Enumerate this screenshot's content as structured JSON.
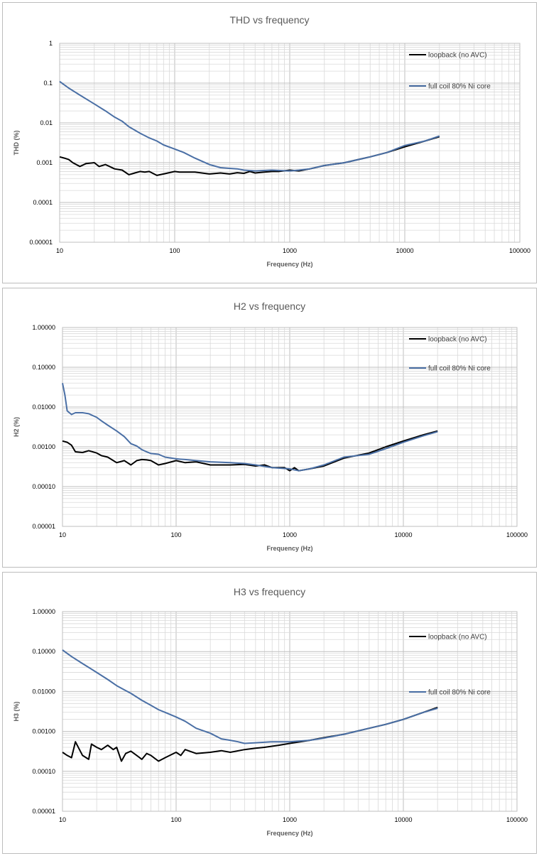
{
  "chart_data": [
    {
      "type": "line",
      "title": "THD vs frequency",
      "xlabel": "Frequency (Hz)",
      "ylabel": "THD (%)",
      "x_scale": "log",
      "y_scale": "log",
      "xlim": [
        10,
        100000
      ],
      "ylim": [
        1e-05,
        1
      ],
      "x_tick_labels": [
        "10",
        "100",
        "1000",
        "10000",
        "100000"
      ],
      "y_tick_labels": [
        "0.00001",
        "0.0001",
        "0.001",
        "0.01",
        "0.1",
        "1"
      ],
      "grid": true,
      "legend": "top-right",
      "series": [
        {
          "name": "loopback (no AVC)",
          "color": "#000000",
          "x": [
            10,
            11,
            12,
            13,
            15,
            17,
            20,
            22,
            25,
            30,
            35,
            40,
            45,
            50,
            55,
            60,
            70,
            80,
            100,
            110,
            120,
            150,
            200,
            250,
            300,
            350,
            400,
            450,
            500,
            600,
            700,
            800,
            1000,
            1200,
            1500,
            2000,
            3000,
            5000,
            7000,
            10000,
            15000,
            20000
          ],
          "y": [
            0.0014,
            0.0013,
            0.0012,
            0.001,
            0.0008,
            0.00095,
            0.001,
            0.0008,
            0.0009,
            0.0007,
            0.00065,
            0.0005,
            0.00055,
            0.0006,
            0.00058,
            0.0006,
            0.00048,
            0.00052,
            0.0006,
            0.00058,
            0.00058,
            0.00058,
            0.00052,
            0.00055,
            0.00052,
            0.00056,
            0.00054,
            0.0006,
            0.00055,
            0.00058,
            0.0006,
            0.0006,
            0.00065,
            0.00062,
            0.0007,
            0.00085,
            0.001,
            0.0014,
            0.0018,
            0.0025,
            0.0035,
            0.0045
          ]
        },
        {
          "name": "full coil 80% Ni core",
          "color": "#4a6fa5",
          "x": [
            10,
            11,
            12,
            15,
            20,
            25,
            30,
            35,
            40,
            50,
            60,
            70,
            80,
            100,
            120,
            150,
            200,
            250,
            300,
            350,
            400,
            500,
            700,
            1000,
            1200,
            1500,
            2000,
            3000,
            5000,
            7000,
            10000,
            15000,
            20000
          ],
          "y": [
            0.11,
            0.09,
            0.075,
            0.05,
            0.03,
            0.02,
            0.014,
            0.011,
            0.008,
            0.0055,
            0.0042,
            0.0035,
            0.0028,
            0.0022,
            0.0018,
            0.0013,
            0.0009,
            0.00075,
            0.00072,
            0.0007,
            0.00065,
            0.00062,
            0.00065,
            0.00062,
            0.00065,
            0.0007,
            0.00085,
            0.001,
            0.0014,
            0.0018,
            0.0027,
            0.0035,
            0.0047
          ]
        }
      ]
    },
    {
      "type": "line",
      "title": "H2 vs frequency",
      "xlabel": "Frequency (Hz)",
      "ylabel": "H2 (%)",
      "x_scale": "log",
      "y_scale": "log",
      "xlim": [
        10,
        100000
      ],
      "ylim": [
        1e-05,
        1
      ],
      "x_tick_labels": [
        "10",
        "100",
        "1000",
        "10000",
        "100000"
      ],
      "y_tick_labels": [
        "0.00001",
        "0.00010",
        "0.00100",
        "0.01000",
        "0.10000",
        "1.00000"
      ],
      "grid": true,
      "legend": "top-right",
      "series": [
        {
          "name": "loopback (no AVC)",
          "color": "#000000",
          "x": [
            10,
            11,
            12,
            13,
            15,
            17,
            20,
            22,
            25,
            30,
            35,
            40,
            45,
            50,
            55,
            60,
            70,
            80,
            100,
            120,
            150,
            200,
            300,
            400,
            500,
            600,
            700,
            800,
            900,
            1000,
            1100,
            1200,
            1500,
            2000,
            3000,
            5000,
            7000,
            10000,
            15000,
            20000
          ],
          "y": [
            0.0014,
            0.0013,
            0.0011,
            0.00075,
            0.00072,
            0.0008,
            0.0007,
            0.0006,
            0.00055,
            0.0004,
            0.00045,
            0.00035,
            0.00045,
            0.00048,
            0.00047,
            0.00045,
            0.00035,
            0.00038,
            0.00045,
            0.0004,
            0.00042,
            0.00035,
            0.00035,
            0.00036,
            0.00033,
            0.00035,
            0.0003,
            0.0003,
            0.0003,
            0.00025,
            0.0003,
            0.00025,
            0.00028,
            0.00033,
            0.00052,
            0.0007,
            0.001,
            0.0014,
            0.002,
            0.0025
          ]
        },
        {
          "name": "full coil  80% Ni core",
          "color": "#4a6fa5",
          "x": [
            10,
            10.5,
            11,
            12,
            13,
            15,
            17,
            20,
            22,
            25,
            30,
            35,
            40,
            45,
            50,
            55,
            60,
            70,
            80,
            100,
            120,
            150,
            200,
            300,
            400,
            500,
            700,
            1000,
            1200,
            1500,
            2000,
            3000,
            5000,
            7000,
            10000,
            15000,
            20000
          ],
          "y": [
            0.04,
            0.02,
            0.008,
            0.0065,
            0.0072,
            0.0072,
            0.0068,
            0.0055,
            0.0045,
            0.0035,
            0.0025,
            0.0018,
            0.0012,
            0.00105,
            0.00085,
            0.00075,
            0.00068,
            0.00065,
            0.00055,
            0.0005,
            0.00048,
            0.00045,
            0.00042,
            0.0004,
            0.00038,
            0.00035,
            0.0003,
            0.00028,
            0.00025,
            0.00028,
            0.00035,
            0.00055,
            0.00065,
            0.0009,
            0.0013,
            0.0019,
            0.0024
          ]
        }
      ]
    },
    {
      "type": "line",
      "title": "H3 vs frequency",
      "xlabel": "Frequency (Hz)",
      "ylabel": "H3 (%)",
      "x_scale": "log",
      "y_scale": "log",
      "xlim": [
        10,
        100000
      ],
      "ylim": [
        1e-05,
        1
      ],
      "x_tick_labels": [
        "10",
        "100",
        "1000",
        "10000",
        "100000"
      ],
      "y_tick_labels": [
        "0.00001",
        "0.00010",
        "0.00100",
        "0.01000",
        "0.10000",
        "1.00000"
      ],
      "grid": true,
      "legend": "top-right",
      "series": [
        {
          "name": "loopback (no AVC)",
          "color": "#000000",
          "x": [
            10,
            11,
            12,
            13,
            15,
            17,
            18,
            20,
            22,
            25,
            28,
            30,
            33,
            36,
            40,
            45,
            50,
            55,
            60,
            70,
            80,
            100,
            110,
            120,
            150,
            200,
            250,
            300,
            400,
            500,
            600,
            800,
            1000,
            1500,
            2000,
            3000,
            5000,
            7000,
            10000,
            15000,
            20000
          ],
          "y": [
            0.0003,
            0.00025,
            0.00022,
            0.00055,
            0.00025,
            0.0002,
            0.00048,
            0.0004,
            0.00035,
            0.00045,
            0.00035,
            0.0004,
            0.00018,
            0.00028,
            0.00032,
            0.00025,
            0.0002,
            0.00028,
            0.00025,
            0.00018,
            0.00022,
            0.0003,
            0.00025,
            0.00035,
            0.00028,
            0.0003,
            0.00033,
            0.0003,
            0.00035,
            0.00038,
            0.0004,
            0.00045,
            0.0005,
            0.0006,
            0.0007,
            0.00085,
            0.0012,
            0.0015,
            0.002,
            0.003,
            0.004
          ]
        },
        {
          "name": "full coil 80% Ni core",
          "color": "#4a6fa5",
          "x": [
            10,
            11,
            12,
            15,
            20,
            25,
            30,
            35,
            40,
            50,
            60,
            70,
            80,
            100,
            120,
            150,
            200,
            250,
            300,
            350,
            400,
            500,
            700,
            1000,
            1500,
            2000,
            3000,
            5000,
            7000,
            10000,
            15000,
            20000
          ],
          "y": [
            0.11,
            0.09,
            0.075,
            0.05,
            0.03,
            0.02,
            0.014,
            0.011,
            0.009,
            0.006,
            0.0045,
            0.0035,
            0.003,
            0.0023,
            0.0018,
            0.0012,
            0.0009,
            0.00065,
            0.0006,
            0.00055,
            0.0005,
            0.00052,
            0.00055,
            0.00055,
            0.0006,
            0.00068,
            0.00085,
            0.0012,
            0.0015,
            0.002,
            0.003,
            0.0038
          ]
        }
      ]
    }
  ]
}
